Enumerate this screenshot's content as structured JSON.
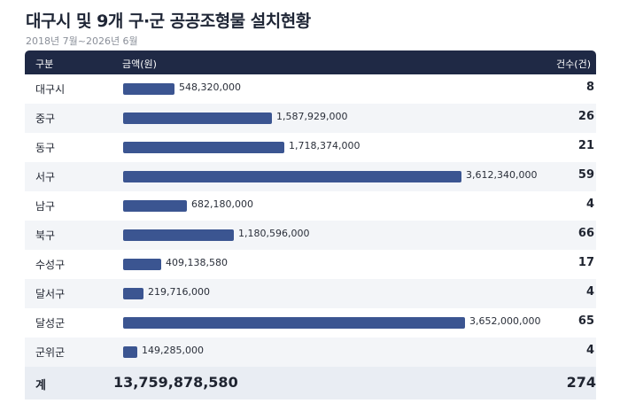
{
  "title": "대구시 및 9개 구·군 공공조형물 설치현황",
  "subtitle": "2018년 7월~2026년 6월",
  "header": {
    "category": "구분",
    "amount": "금액(원)",
    "count": "건수(건)"
  },
  "chart_data": {
    "type": "bar",
    "orientation": "horizontal",
    "categories": [
      "대구시",
      "중구",
      "동구",
      "서구",
      "남구",
      "북구",
      "수성구",
      "달서구",
      "달성군",
      "군위군"
    ],
    "series": [
      {
        "values": [
          548320000,
          1587929000,
          1718374000,
          3612340000,
          682180000,
          1180596000,
          409138580,
          219716000,
          3652000000,
          149285000
        ]
      }
    ],
    "value_labels": [
      "548,320,000",
      "1,587,929,000",
      "1,718,374,000",
      "3,612,340,000",
      "682,180,000",
      "1,180,596,000",
      "409,138,580",
      "219,716,000",
      "3,652,000,000",
      "149,285,000"
    ],
    "counts": [
      "8",
      "26",
      "21",
      "59",
      "4",
      "66",
      "17",
      "4",
      "65",
      "4"
    ],
    "bar_color": "#3b5591"
  },
  "total": {
    "label": "계",
    "amount": "13,759,878,580",
    "count": "274"
  }
}
